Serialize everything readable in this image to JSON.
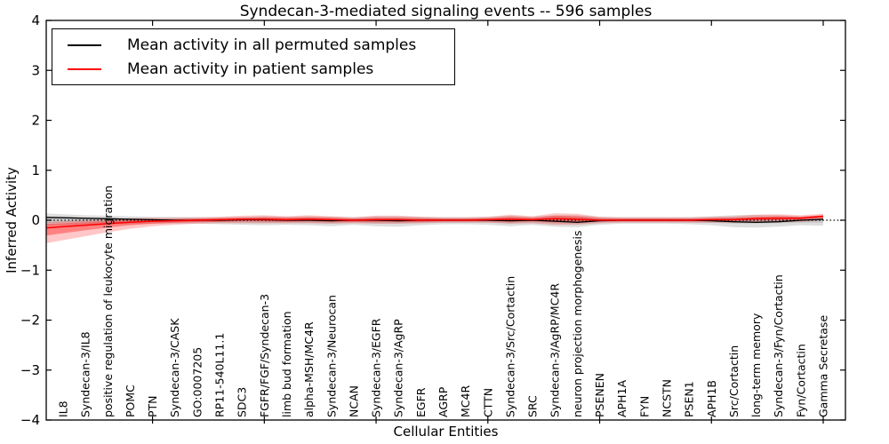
{
  "figure": {
    "title": "Syndecan-3-mediated signaling events -- 596 samples",
    "xlabel": "Cellular Entities",
    "ylabel": "Inferred Activity"
  },
  "legend": {
    "entries": [
      {
        "label": "Mean activity in all permuted samples",
        "color": "#000000"
      },
      {
        "label": "Mean activity in patient samples",
        "color": "#ff0000"
      }
    ],
    "position": "upper left"
  },
  "chart_data": {
    "type": "line",
    "title": "Syndecan-3-mediated signaling events -- 596 samples",
    "xlabel": "Cellular Entities",
    "ylabel": "Inferred Activity",
    "ylim": [
      -4,
      4
    ],
    "grid": false,
    "legend_position": "upper left",
    "y_tick_values": [
      4,
      3,
      2,
      1,
      0,
      -1,
      -2,
      -3,
      -4
    ],
    "y_tick_labels": [
      "4",
      "3",
      "2",
      "1",
      "0",
      "−1",
      "−2",
      "−3",
      "−4"
    ],
    "x_major_tick_entities": [
      5,
      10,
      15,
      20,
      25,
      30,
      35
    ],
    "baseline": {
      "value": 0,
      "style": "dotted",
      "color": "#000000"
    },
    "categories": [
      "IL8",
      "Syndecan-3/IL8",
      "positive regulation of leukocyte migration",
      "POMC",
      "PTN",
      "Syndecan-3/CASK",
      "GO:0007205",
      "RP11-540L11.1",
      "SDC3",
      "FGFR/FGF/Syndecan-3",
      "limb bud formation",
      "alpha-MSH/MC4R",
      "Syndecan-3/Neurocan",
      "NCAN",
      "Syndecan-3/EGFR",
      "Syndecan-3/AgRP",
      "EGFR",
      "AGRP",
      "MC4R",
      "CTTN",
      "Syndecan-3/Src/Cortactin",
      "SRC",
      "Syndecan-3/AgRP/MC4R",
      "neuron projection morphogenesis",
      "PSENEN",
      "APH1A",
      "FYN",
      "NCSTN",
      "PSEN1",
      "APH1B",
      "Src/Cortactin",
      "long-term memory",
      "Syndecan-3/Fyn/Cortactin",
      "Fyn/Cortactin",
      "Gamma Secretase"
    ],
    "series": [
      {
        "name": "Mean activity in all permuted samples",
        "color": "#000000",
        "width": 1.3,
        "values": [
          0.05,
          0.04,
          0.03,
          0.02,
          0.01,
          0.0,
          0.0,
          0.0,
          0.01,
          0.01,
          0.0,
          0.0,
          -0.01,
          0.0,
          0.0,
          -0.01,
          0.0,
          0.0,
          0.0,
          0.0,
          -0.01,
          0.0,
          -0.02,
          -0.04,
          -0.01,
          0.0,
          0.0,
          0.0,
          0.0,
          -0.01,
          -0.03,
          -0.04,
          -0.03,
          0.0,
          0.02
        ]
      },
      {
        "name": "Mean activity in patient samples",
        "color": "#ff0000",
        "width": 1.5,
        "values": [
          -0.13,
          -0.1,
          -0.07,
          -0.04,
          -0.02,
          -0.01,
          0.0,
          0.01,
          0.02,
          0.02,
          0.01,
          0.02,
          0.01,
          0.0,
          0.01,
          0.01,
          0.0,
          0.0,
          0.0,
          0.01,
          0.02,
          0.01,
          0.03,
          0.02,
          0.0,
          0.0,
          0.0,
          0.0,
          0.0,
          0.01,
          0.01,
          0.03,
          0.04,
          0.04,
          0.08
        ]
      }
    ],
    "bands": [
      {
        "name": "permuted-range-outer",
        "color": "rgba(0,0,0,0.13)",
        "upper": [
          0.12,
          0.1,
          0.09,
          0.08,
          0.07,
          0.07,
          0.06,
          0.06,
          0.07,
          0.08,
          0.07,
          0.08,
          0.07,
          0.06,
          0.08,
          0.08,
          0.07,
          0.06,
          0.06,
          0.07,
          0.09,
          0.07,
          0.1,
          0.1,
          0.07,
          0.06,
          0.06,
          0.06,
          0.06,
          0.08,
          0.1,
          0.11,
          0.1,
          0.08,
          0.09
        ],
        "lower": [
          -0.1,
          -0.09,
          -0.08,
          -0.08,
          -0.07,
          -0.07,
          -0.07,
          -0.08,
          -0.09,
          -0.1,
          -0.09,
          -0.1,
          -0.12,
          -0.09,
          -0.12,
          -0.13,
          -0.1,
          -0.08,
          -0.08,
          -0.09,
          -0.12,
          -0.09,
          -0.13,
          -0.14,
          -0.09,
          -0.07,
          -0.07,
          -0.07,
          -0.08,
          -0.1,
          -0.14,
          -0.15,
          -0.13,
          -0.1,
          -0.11
        ]
      },
      {
        "name": "permuted-range-inner",
        "color": "rgba(0,0,0,0.10)",
        "upper": [
          0.06,
          0.05,
          0.04,
          0.04,
          0.03,
          0.03,
          0.03,
          0.03,
          0.03,
          0.04,
          0.03,
          0.04,
          0.03,
          0.03,
          0.04,
          0.04,
          0.03,
          0.03,
          0.03,
          0.03,
          0.04,
          0.03,
          0.05,
          0.05,
          0.03,
          0.03,
          0.03,
          0.03,
          0.03,
          0.04,
          0.05,
          0.05,
          0.05,
          0.04,
          0.04
        ],
        "lower": [
          -0.05,
          -0.04,
          -0.04,
          -0.04,
          -0.03,
          -0.03,
          -0.03,
          -0.04,
          -0.04,
          -0.05,
          -0.04,
          -0.05,
          -0.06,
          -0.04,
          -0.06,
          -0.06,
          -0.05,
          -0.04,
          -0.04,
          -0.04,
          -0.06,
          -0.04,
          -0.06,
          -0.07,
          -0.04,
          -0.03,
          -0.03,
          -0.03,
          -0.04,
          -0.05,
          -0.07,
          -0.07,
          -0.06,
          -0.05,
          -0.05
        ]
      },
      {
        "name": "patient-range-outer",
        "color": "rgba(255,0,0,0.22)",
        "upper": [
          -0.02,
          0.0,
          0.02,
          0.04,
          0.05,
          0.05,
          0.06,
          0.07,
          0.09,
          0.1,
          0.08,
          0.1,
          0.08,
          0.06,
          0.09,
          0.09,
          0.07,
          0.06,
          0.06,
          0.07,
          0.11,
          0.08,
          0.14,
          0.13,
          0.07,
          0.06,
          0.06,
          0.06,
          0.06,
          0.07,
          0.08,
          0.11,
          0.12,
          0.1,
          0.13
        ],
        "lower": [
          -0.4,
          -0.32,
          -0.24,
          -0.17,
          -0.12,
          -0.09,
          -0.07,
          -0.06,
          -0.06,
          -0.06,
          -0.06,
          -0.06,
          -0.07,
          -0.06,
          -0.07,
          -0.07,
          -0.06,
          -0.05,
          -0.05,
          -0.05,
          -0.07,
          -0.06,
          -0.09,
          -0.09,
          -0.06,
          -0.05,
          -0.05,
          -0.05,
          -0.05,
          -0.05,
          -0.05,
          -0.05,
          -0.04,
          -0.03,
          0.0
        ]
      },
      {
        "name": "patient-range-inner",
        "color": "rgba(255,0,0,0.35)",
        "upper": [
          -0.06,
          -0.04,
          -0.02,
          0.0,
          0.02,
          0.02,
          0.03,
          0.04,
          0.05,
          0.06,
          0.05,
          0.06,
          0.05,
          0.03,
          0.05,
          0.05,
          0.04,
          0.03,
          0.03,
          0.04,
          0.07,
          0.05,
          0.09,
          0.08,
          0.04,
          0.03,
          0.03,
          0.03,
          0.03,
          0.04,
          0.05,
          0.07,
          0.08,
          0.07,
          0.1
        ],
        "lower": [
          -0.26,
          -0.2,
          -0.15,
          -0.1,
          -0.07,
          -0.05,
          -0.04,
          -0.03,
          -0.02,
          -0.02,
          -0.03,
          -0.02,
          -0.03,
          -0.03,
          -0.03,
          -0.03,
          -0.03,
          -0.02,
          -0.02,
          -0.02,
          -0.03,
          -0.02,
          -0.04,
          -0.04,
          -0.02,
          -0.02,
          -0.02,
          -0.02,
          -0.02,
          -0.02,
          -0.01,
          0.0,
          0.0,
          0.01,
          0.05
        ]
      }
    ]
  }
}
